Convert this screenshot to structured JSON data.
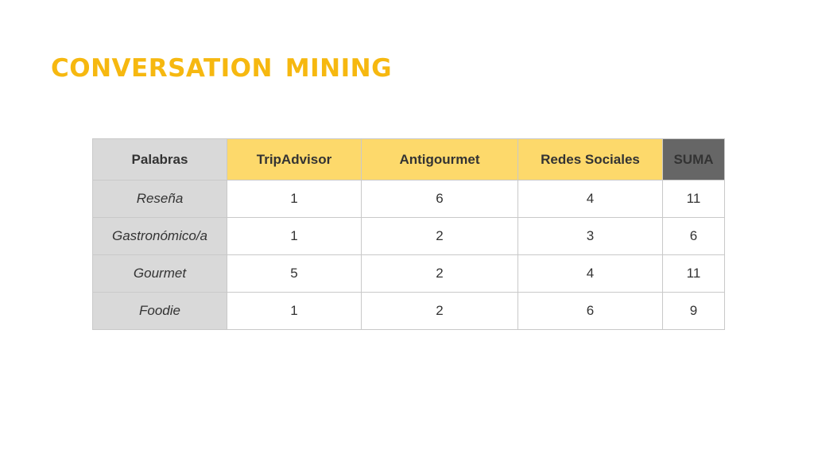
{
  "title": "Conversation mining",
  "colors": {
    "title": "#f6b810",
    "header_source": "#fdd96b",
    "header_sum": "#666666",
    "label_column": "#d9d9d9"
  },
  "table": {
    "headers": [
      "Palabras",
      "TripAdvisor",
      "Antigourmet",
      "Redes Sociales",
      "SUMA"
    ],
    "rows": [
      {
        "label": "Reseña",
        "tripadvisor": "1",
        "antigourmet": "6",
        "redes_sociales": "4",
        "suma": "11"
      },
      {
        "label": "Gastronómico/a",
        "tripadvisor": "1",
        "antigourmet": "2",
        "redes_sociales": "3",
        "suma": "6"
      },
      {
        "label": "Gourmet",
        "tripadvisor": "5",
        "antigourmet": "2",
        "redes_sociales": "4",
        "suma": "11"
      },
      {
        "label": "Foodie",
        "tripadvisor": "1",
        "antigourmet": "2",
        "redes_sociales": "6",
        "suma": "9"
      }
    ]
  }
}
